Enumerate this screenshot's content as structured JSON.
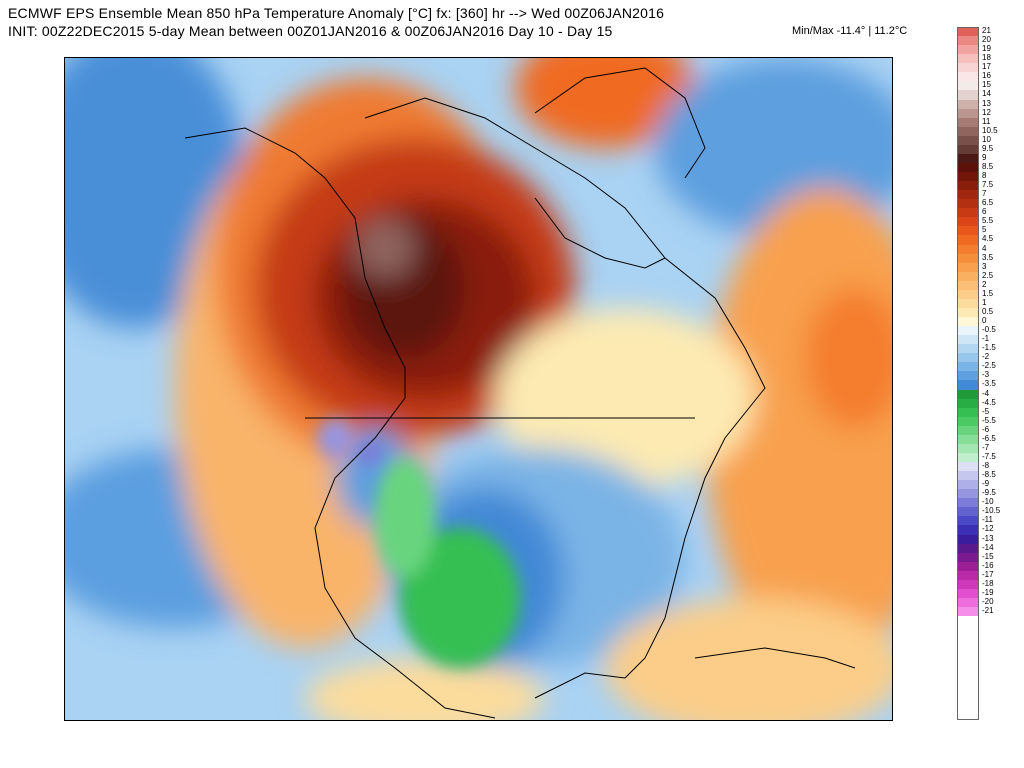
{
  "header": {
    "line1": "ECMWF EPS Ensemble Mean 850 hPa Temperature Anomaly [°C] fx: [360] hr --> Wed 00Z06JAN2016",
    "line2": "INIT: 00Z22DEC2015 5-day Mean between 00Z01JAN2016 & 00Z06JAN2016   Day 10 - Day 15",
    "minmax": "Min/Max -11.4° | 11.2°C"
  },
  "map": {
    "region": "North America",
    "field": "850 hPa temperature anomaly",
    "land_outline_color": "#000000"
  },
  "legend": [
    {
      "label": "21",
      "color": "#e0605a"
    },
    {
      "label": "20",
      "color": "#e98882"
    },
    {
      "label": "19",
      "color": "#f0a3a0"
    },
    {
      "label": "18",
      "color": "#f5bfbe"
    },
    {
      "label": "17",
      "color": "#f8d4d4"
    },
    {
      "label": "16",
      "color": "#fae6e6"
    },
    {
      "label": "15",
      "color": "#f4ebe9"
    },
    {
      "label": "14",
      "color": "#e4d2cf"
    },
    {
      "label": "13",
      "color": "#cfb1ac"
    },
    {
      "label": "12",
      "color": "#bb9690"
    },
    {
      "label": "11",
      "color": "#a57b74"
    },
    {
      "label": "10.5",
      "color": "#8f655e"
    },
    {
      "label": "10",
      "color": "#7a514a"
    },
    {
      "label": "9.5",
      "color": "#663c36"
    },
    {
      "label": "9",
      "color": "#4b1a14"
    },
    {
      "label": "8.5",
      "color": "#5c1208"
    },
    {
      "label": "8",
      "color": "#73160a"
    },
    {
      "label": "7.5",
      "color": "#8a1e0c"
    },
    {
      "label": "7",
      "color": "#a1270f"
    },
    {
      "label": "6.5",
      "color": "#b43012"
    },
    {
      "label": "6",
      "color": "#c83a14"
    },
    {
      "label": "5.5",
      "color": "#da4617"
    },
    {
      "label": "5",
      "color": "#e8561b"
    },
    {
      "label": "4.5",
      "color": "#f06a22"
    },
    {
      "label": "4",
      "color": "#f47d2e"
    },
    {
      "label": "3.5",
      "color": "#f68f3c"
    },
    {
      "label": "3",
      "color": "#f8a04d"
    },
    {
      "label": "2.5",
      "color": "#f9b061"
    },
    {
      "label": "2",
      "color": "#fabe74"
    },
    {
      "label": "1.5",
      "color": "#fbcd88"
    },
    {
      "label": "1",
      "color": "#fcdc9c"
    },
    {
      "label": "0.5",
      "color": "#fdeab2"
    },
    {
      "label": "0",
      "color": "#fff7d6"
    },
    {
      "label": "-0.5",
      "color": "#e9f4fb"
    },
    {
      "label": "-1",
      "color": "#cfe6f6"
    },
    {
      "label": "-1.5",
      "color": "#b4d7f1"
    },
    {
      "label": "-2",
      "color": "#98c6ec"
    },
    {
      "label": "-2.5",
      "color": "#7ab4e6"
    },
    {
      "label": "-3",
      "color": "#5d9fdf"
    },
    {
      "label": "-3.5",
      "color": "#4289d6"
    },
    {
      "label": "-4",
      "color": "#1f9b3a"
    },
    {
      "label": "-4.5",
      "color": "#27ad44"
    },
    {
      "label": "-5",
      "color": "#35bf52"
    },
    {
      "label": "-5.5",
      "color": "#4ccb65"
    },
    {
      "label": "-6",
      "color": "#68d57e"
    },
    {
      "label": "-6.5",
      "color": "#86de98"
    },
    {
      "label": "-7",
      "color": "#a4e6b2"
    },
    {
      "label": "-7.5",
      "color": "#c1eecb"
    },
    {
      "label": "-8",
      "color": "#dde0f4"
    },
    {
      "label": "-8.5",
      "color": "#c6c7ef"
    },
    {
      "label": "-9",
      "color": "#aeaee8"
    },
    {
      "label": "-9.5",
      "color": "#9595e0"
    },
    {
      "label": "-10",
      "color": "#7c7cd8"
    },
    {
      "label": "-10.5",
      "color": "#6262cf"
    },
    {
      "label": "-11",
      "color": "#4a48c5"
    },
    {
      "label": "-12",
      "color": "#3a2fb5"
    },
    {
      "label": "-13",
      "color": "#3a1d9d"
    },
    {
      "label": "-14",
      "color": "#5a1a8e"
    },
    {
      "label": "-15",
      "color": "#7a1a8e"
    },
    {
      "label": "-16",
      "color": "#9a1f97"
    },
    {
      "label": "-17",
      "color": "#b82aa8"
    },
    {
      "label": "-18",
      "color": "#d038bb"
    },
    {
      "label": "-19",
      "color": "#e24fce"
    },
    {
      "label": "-20",
      "color": "#ee6cdc"
    },
    {
      "label": "-21",
      "color": "#f58ee8"
    }
  ]
}
